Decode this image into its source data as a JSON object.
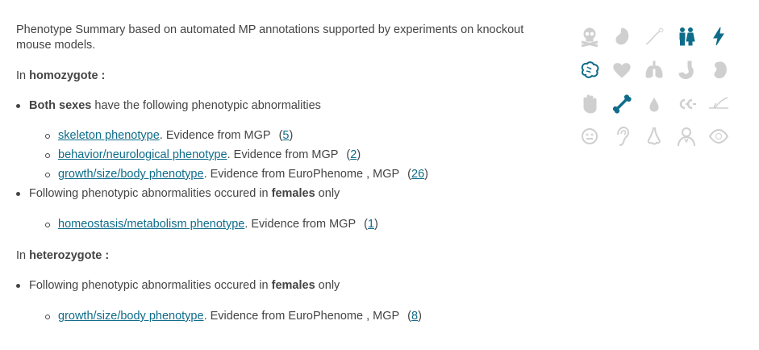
{
  "summary": {
    "intro": "Phenotype Summary based on automated MP annotations supported by experiments on knockout mouse models.",
    "homozygote_prefix": "In ",
    "homozygote_label": "homozygote :",
    "heterozygote_prefix": "In ",
    "heterozygote_label": "heterozygote :",
    "homozygote": {
      "both_sexes_bold": "Both sexes",
      "both_sexes_rest": " have the following phenotypic abnormalities",
      "both_sexes_items": [
        {
          "term": "skeleton phenotype",
          "evidence": ". Evidence from MGP",
          "open": "(",
          "count": "5",
          "close": ")"
        },
        {
          "term": "behavior/neurological phenotype",
          "evidence": ". Evidence from MGP",
          "open": "(",
          "count": "2",
          "close": ")"
        },
        {
          "term": "growth/size/body phenotype",
          "evidence": ". Evidence from EuroPhenome ,  MGP",
          "open": "(",
          "count": "26",
          "close": ")"
        }
      ],
      "females_prefix": "Following phenotypic abnormalities occured in ",
      "females_bold": "females",
      "females_suffix": " only",
      "female_items": [
        {
          "term": "homeostasis/metabolism phenotype",
          "evidence": ". Evidence from MGP",
          "open": "(",
          "count": "1",
          "close": ")"
        }
      ]
    },
    "heterozygote": {
      "females_prefix": "Following phenotypic abnormalities occured in ",
      "females_bold": "females",
      "females_suffix": " only",
      "female_items": [
        {
          "term": "growth/size/body phenotype",
          "evidence": ". Evidence from EuroPhenome ,  MGP",
          "open": "(",
          "count": "8",
          "close": ")"
        }
      ]
    }
  },
  "icons": {
    "active_color": "#0f6c8a",
    "inactive_color": "#cfcfcf",
    "rows": [
      [
        {
          "name": "skull-crossbones-icon",
          "active": false
        },
        {
          "name": "embryo-icon",
          "active": false
        },
        {
          "name": "sperm-icon",
          "active": false
        },
        {
          "name": "people-icon",
          "active": true
        },
        {
          "name": "lightning-icon",
          "active": true
        }
      ],
      [
        {
          "name": "brain-icon",
          "active": true
        },
        {
          "name": "heart-icon",
          "active": false
        },
        {
          "name": "lungs-icon",
          "active": false
        },
        {
          "name": "stomach-icon",
          "active": false
        },
        {
          "name": "kidney-icon",
          "active": false
        }
      ],
      [
        {
          "name": "hand-icon",
          "active": false
        },
        {
          "name": "bone-icon",
          "active": true
        },
        {
          "name": "drop-icon",
          "active": false
        },
        {
          "name": "cells-icon",
          "active": false
        },
        {
          "name": "hair-icon",
          "active": false
        }
      ],
      [
        {
          "name": "face-icon",
          "active": false
        },
        {
          "name": "ear-icon",
          "active": false
        },
        {
          "name": "nose-icon",
          "active": false
        },
        {
          "name": "person-icon",
          "active": false
        },
        {
          "name": "eye-icon",
          "active": false
        }
      ]
    ]
  }
}
